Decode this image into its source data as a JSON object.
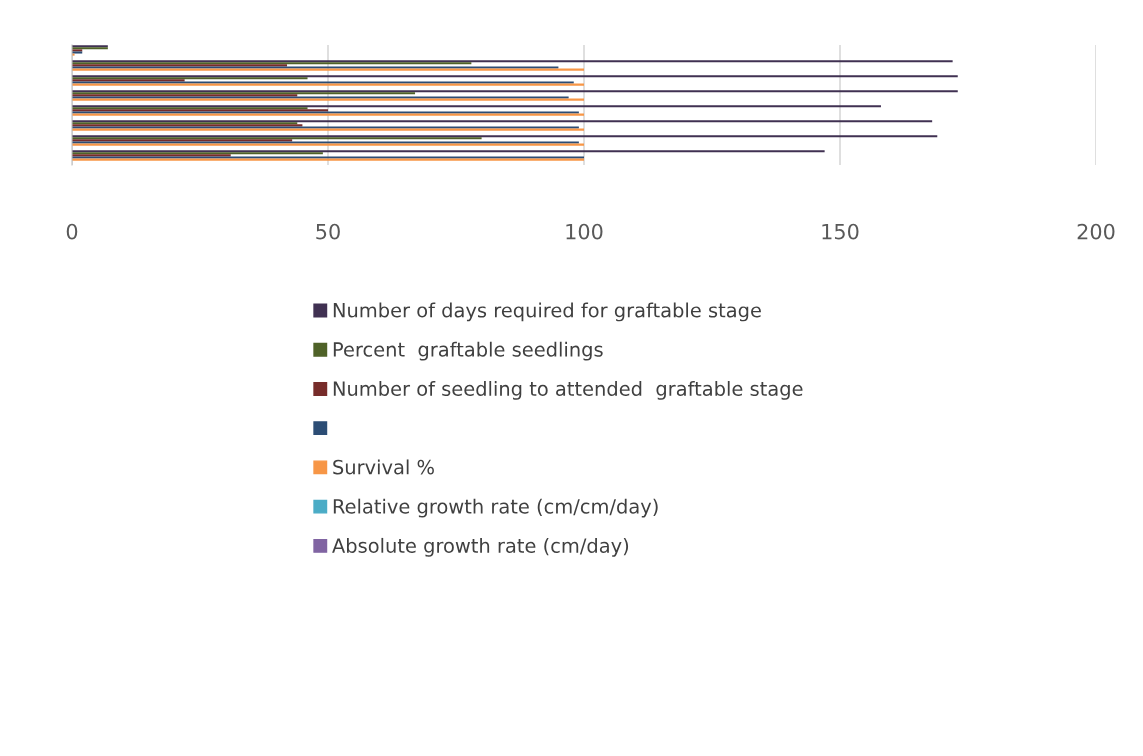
{
  "chart_data": {
    "type": "bar",
    "orientation": "horizontal",
    "categories": [
      null,
      null,
      null,
      null,
      null,
      null,
      null,
      null
    ],
    "series": [
      {
        "name": "Number of days required for graftable stage",
        "color": "#403152",
        "values": [
          7,
          172,
          173,
          173,
          158,
          168,
          169,
          147
        ]
      },
      {
        "name": "Percent  graftable seedlings",
        "color": "#4f6228",
        "values": [
          7,
          78,
          46,
          67,
          46,
          44,
          80,
          49
        ]
      },
      {
        "name": "Number of seedling to attended  graftable stage",
        "color": "#772c2a",
        "values": [
          2,
          42,
          22,
          44,
          50,
          45,
          43,
          31
        ]
      },
      {
        "color": "#2c4d75",
        "values": [
          2,
          95,
          98,
          97,
          99,
          99,
          99,
          100
        ]
      },
      {
        "name": "Survival %",
        "color": "#f79646",
        "values": [
          0.5,
          100,
          100,
          100,
          100,
          100,
          100,
          100
        ]
      },
      {
        "name": "Relative growth rate (cm/cm/day)",
        "color": "#4bacc6",
        "values": [
          null,
          null,
          null,
          null,
          null,
          null,
          null,
          null
        ]
      },
      {
        "name": "Absolute growth rate (cm/day)",
        "color": "#8064a2",
        "values": [
          null,
          null,
          null,
          null,
          null,
          null,
          null,
          null
        ]
      }
    ],
    "xlim": [
      0,
      200
    ],
    "xticks": [
      0,
      50,
      100,
      150,
      200
    ],
    "grid": "x",
    "legend": "bottom",
    "tick_labels": "x"
  }
}
